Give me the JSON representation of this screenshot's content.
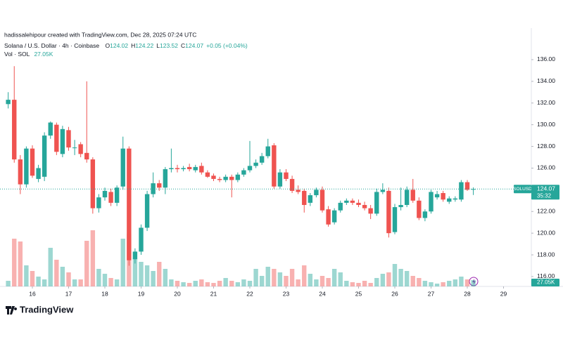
{
  "header": {
    "credit": "hadissalehipour created with TradingView.com, Dec 28, 2025 07:24 UTC",
    "symbol": "Solana / U.S. Dollar · 4h · Coinbase",
    "ohlc_labels": [
      "O",
      "H",
      "L",
      "C"
    ],
    "change": "+0.05 (+0.04%)",
    "volume_title": "Vol · SOL"
  },
  "brand": "TradingView",
  "chart_data": {
    "type": "candlestick",
    "x": [
      15.333,
      15.5,
      15.667,
      15.833,
      16,
      16.167,
      16.333,
      16.5,
      16.667,
      16.833,
      17,
      17.167,
      17.333,
      17.5,
      17.667,
      17.833,
      18,
      18.167,
      18.333,
      18.5,
      18.667,
      18.833,
      19,
      19.167,
      19.333,
      19.5,
      19.667,
      19.833,
      20,
      20.167,
      20.333,
      20.5,
      20.667,
      20.833,
      21,
      21.167,
      21.333,
      21.5,
      21.667,
      21.833,
      22,
      22.167,
      22.333,
      22.5,
      22.667,
      22.833,
      23,
      23.167,
      23.333,
      23.5,
      23.667,
      23.833,
      24,
      24.167,
      24.333,
      24.5,
      24.667,
      24.833,
      25,
      25.167,
      25.333,
      25.5,
      25.667,
      25.833,
      26,
      26.167,
      26.333,
      26.5,
      26.667,
      26.833,
      27,
      27.167,
      27.333,
      27.5,
      27.667,
      27.833,
      28,
      28.167
    ],
    "open": [
      131.9,
      132.3,
      126.8,
      124.5,
      127.8,
      125.0,
      125.2,
      129.0,
      130.0,
      127.3,
      129.5,
      127.9,
      128.2,
      127.4,
      126.8,
      122.3,
      123.3,
      123.8,
      122.8,
      124.3,
      127.8,
      117.6,
      118.3,
      120.5,
      123.6,
      124.6,
      124.2,
      125.9,
      126.0,
      125.9,
      126.1,
      125.8,
      126.2,
      125.6,
      125.3,
      125.0,
      124.9,
      125.2,
      124.9,
      125.4,
      125.8,
      126.2,
      126.5,
      127.1,
      128.1,
      124.3,
      125.6,
      125.0,
      124.0,
      123.9,
      122.8,
      123.5,
      124.0,
      122.2,
      121.0,
      122.1,
      122.8,
      123.0,
      122.8,
      122.6,
      122.3,
      121.8,
      123.8,
      123.9,
      120.1,
      122.4,
      122.6,
      124.0,
      123.0,
      121.4,
      122.0,
      123.3,
      123.7,
      122.9,
      123.1,
      123.1,
      124.7,
      124.02
    ],
    "high": [
      133.0,
      135.4,
      127.2,
      128.0,
      128.1,
      126.3,
      129.3,
      130.3,
      130.2,
      129.9,
      129.8,
      128.6,
      128.4,
      134.0,
      127.0,
      123.6,
      124.2,
      124.1,
      124.4,
      128.9,
      128.0,
      118.6,
      120.8,
      123.9,
      125.6,
      124.9,
      126.1,
      127.8,
      126.3,
      126.2,
      126.4,
      126.3,
      126.5,
      125.8,
      125.5,
      125.2,
      125.4,
      125.4,
      125.6,
      126.0,
      128.5,
      126.8,
      127.4,
      128.7,
      128.3,
      125.9,
      125.9,
      125.3,
      124.4,
      124.1,
      123.7,
      124.2,
      124.3,
      122.5,
      122.3,
      123.0,
      123.2,
      123.2,
      123.1,
      122.9,
      122.6,
      124.1,
      124.6,
      124.2,
      122.7,
      124.2,
      124.3,
      125.0,
      123.3,
      122.2,
      124.0,
      123.9,
      123.9,
      123.4,
      123.4,
      124.9,
      124.9,
      124.22
    ],
    "low": [
      131.5,
      126.5,
      123.6,
      124.2,
      125.1,
      124.7,
      124.8,
      128.7,
      127.2,
      127.0,
      127.6,
      127.2,
      127.0,
      126.5,
      121.8,
      121.9,
      123.0,
      122.5,
      122.5,
      124.0,
      117.0,
      117.2,
      118.0,
      120.2,
      123.3,
      123.9,
      123.6,
      125.6,
      125.6,
      125.7,
      125.7,
      125.6,
      125.4,
      125.1,
      124.8,
      124.7,
      124.7,
      123.3,
      124.7,
      125.2,
      125.6,
      126.0,
      126.3,
      126.9,
      124.1,
      124.1,
      124.8,
      123.7,
      123.6,
      121.9,
      122.5,
      123.3,
      121.9,
      120.6,
      120.8,
      121.9,
      122.6,
      122.6,
      122.4,
      122.1,
      121.3,
      121.6,
      123.6,
      119.6,
      119.9,
      122.1,
      122.4,
      122.8,
      121.2,
      121.1,
      121.8,
      123.1,
      122.9,
      122.7,
      122.9,
      122.9,
      123.9,
      123.52
    ],
    "close": [
      132.3,
      126.8,
      124.5,
      127.8,
      125.3,
      126.0,
      129.0,
      130.2,
      127.5,
      129.6,
      127.9,
      127.9,
      127.3,
      126.8,
      122.3,
      123.3,
      123.9,
      122.8,
      124.2,
      127.8,
      117.5,
      118.3,
      120.5,
      123.6,
      124.6,
      124.2,
      125.9,
      126.0,
      125.9,
      126.0,
      125.9,
      126.1,
      125.6,
      125.2,
      125.0,
      124.9,
      125.2,
      124.9,
      125.4,
      125.8,
      126.2,
      126.5,
      127.1,
      128.0,
      124.3,
      125.6,
      125.0,
      123.9,
      123.8,
      122.6,
      123.5,
      124.0,
      122.1,
      120.8,
      122.1,
      122.8,
      123.0,
      122.8,
      122.6,
      122.3,
      121.8,
      123.8,
      124.0,
      120.0,
      122.4,
      122.6,
      124.0,
      123.0,
      121.4,
      122.0,
      123.8,
      123.6,
      123.1,
      123.2,
      123.2,
      124.7,
      124.0,
      124.07
    ],
    "volume": [
      24,
      204,
      192,
      90,
      66,
      42,
      30,
      165,
      114,
      84,
      60,
      30,
      30,
      195,
      240,
      75,
      54,
      36,
      30,
      204,
      225,
      120,
      105,
      90,
      66,
      105,
      75,
      30,
      24,
      18,
      15,
      24,
      30,
      18,
      15,
      24,
      36,
      24,
      18,
      30,
      24,
      75,
      45,
      84,
      75,
      60,
      45,
      75,
      30,
      90,
      54,
      30,
      45,
      36,
      75,
      60,
      24,
      18,
      15,
      24,
      15,
      36,
      54,
      60,
      96,
      75,
      66,
      45,
      36,
      24,
      18,
      12,
      18,
      24,
      30,
      42,
      30,
      27.05
    ],
    "volume_label": "27.05K",
    "up_color": "#26a69a",
    "down_color": "#ef5350",
    "xlim": [
      15.107,
      29.767
    ],
    "xticks": [
      16,
      17,
      18,
      19,
      20,
      21,
      22,
      23,
      24,
      25,
      26,
      27,
      28,
      29
    ],
    "ylim": [
      115.09,
      138.91
    ],
    "yticks": [
      {
        "value": 116,
        "label": "116.00"
      },
      {
        "value": 118,
        "label": "118.00"
      },
      {
        "value": 120,
        "label": "120.00"
      },
      {
        "value": 122,
        "label": "122.00"
      },
      {
        "value": 124,
        "label": "124.00"
      },
      {
        "value": 126,
        "label": "126.00"
      },
      {
        "value": 128,
        "label": "128.00"
      },
      {
        "value": 130,
        "label": "130.00"
      },
      {
        "value": 132,
        "label": "132.00"
      },
      {
        "value": 134,
        "label": "134.00"
      },
      {
        "value": 136,
        "label": "136.00"
      }
    ],
    "symbol_tag": "SOLUSD",
    "countdown": "35:32",
    "grid": false
  }
}
